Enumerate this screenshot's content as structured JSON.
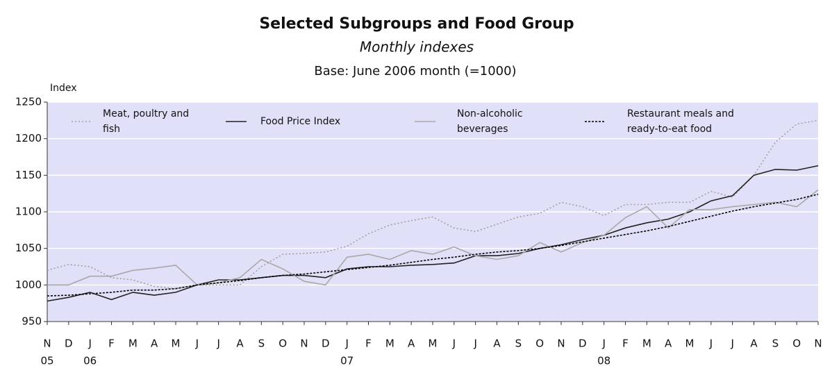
{
  "chart_data": {
    "type": "line",
    "title": "Selected Subgroups and Food Group",
    "subtitle": "Monthly indexes",
    "note": "Base: June 2006 month (=1000)",
    "y_label": "Index",
    "categories": [
      "N",
      "D",
      "J",
      "F",
      "M",
      "A",
      "M",
      "J",
      "J",
      "A",
      "S",
      "O",
      "N",
      "D",
      "J",
      "F",
      "M",
      "A",
      "M",
      "J",
      "J",
      "A",
      "S",
      "O",
      "N",
      "D",
      "J",
      "F",
      "M",
      "A",
      "M",
      "J",
      "J",
      "A",
      "S",
      "O",
      "N"
    ],
    "category_years": [
      "05",
      null,
      "06",
      null,
      null,
      null,
      null,
      null,
      null,
      null,
      null,
      null,
      null,
      null,
      "07",
      null,
      null,
      null,
      null,
      null,
      null,
      null,
      null,
      null,
      null,
      null,
      "08",
      null,
      null,
      null,
      null,
      null,
      null,
      null,
      null,
      null,
      null
    ],
    "ylim": [
      950,
      1250
    ],
    "yticks": [
      950,
      1000,
      1050,
      1100,
      1150,
      1200,
      1250
    ],
    "grid": true,
    "background": "#e0e0f8",
    "series": [
      {
        "name": "Meat, poultry and fish",
        "color": "#a0a0a0",
        "line_style": "dotted",
        "values": [
          1020,
          1028,
          1025,
          1010,
          1007,
          998,
          995,
          1000,
          1000,
          1000,
          1025,
          1042,
          1043,
          1045,
          1053,
          1070,
          1082,
          1088,
          1093,
          1078,
          1073,
          1083,
          1093,
          1098,
          1113,
          1107,
          1095,
          1110,
          1110,
          1113,
          1113,
          1128,
          1120,
          1150,
          1195,
          1220,
          1225
        ]
      },
      {
        "name": "Food Price Index",
        "color": "#202020",
        "line_style": "solid",
        "values": [
          978,
          983,
          990,
          980,
          990,
          986,
          990,
          1000,
          1007,
          1007,
          1010,
          1013,
          1013,
          1010,
          1022,
          1025,
          1025,
          1027,
          1028,
          1030,
          1040,
          1040,
          1043,
          1050,
          1055,
          1062,
          1068,
          1078,
          1085,
          1090,
          1100,
          1115,
          1122,
          1150,
          1158,
          1157,
          1163
        ]
      },
      {
        "name": "Non-alcoholic beverages",
        "color": "#a8a8a8",
        "line_style": "solid",
        "values": [
          1000,
          1000,
          1012,
          1012,
          1020,
          1023,
          1027,
          1000,
          1003,
          1010,
          1035,
          1022,
          1005,
          1000,
          1038,
          1042,
          1035,
          1047,
          1042,
          1052,
          1040,
          1035,
          1040,
          1058,
          1045,
          1058,
          1068,
          1092,
          1107,
          1078,
          1103,
          1103,
          1107,
          1110,
          1113,
          1107,
          1130
        ]
      },
      {
        "name": "Restaurant meals and ready-to-eat food",
        "color": "#000000",
        "line_style": "dashed",
        "values": [
          985,
          986,
          988,
          990,
          993,
          993,
          995,
          1000,
          1003,
          1006,
          1010,
          1013,
          1015,
          1018,
          1021,
          1024,
          1027,
          1031,
          1035,
          1038,
          1042,
          1045,
          1047,
          1050,
          1054,
          1059,
          1064,
          1069,
          1074,
          1080,
          1087,
          1094,
          1101,
          1107,
          1112,
          1117,
          1124
        ]
      }
    ]
  }
}
